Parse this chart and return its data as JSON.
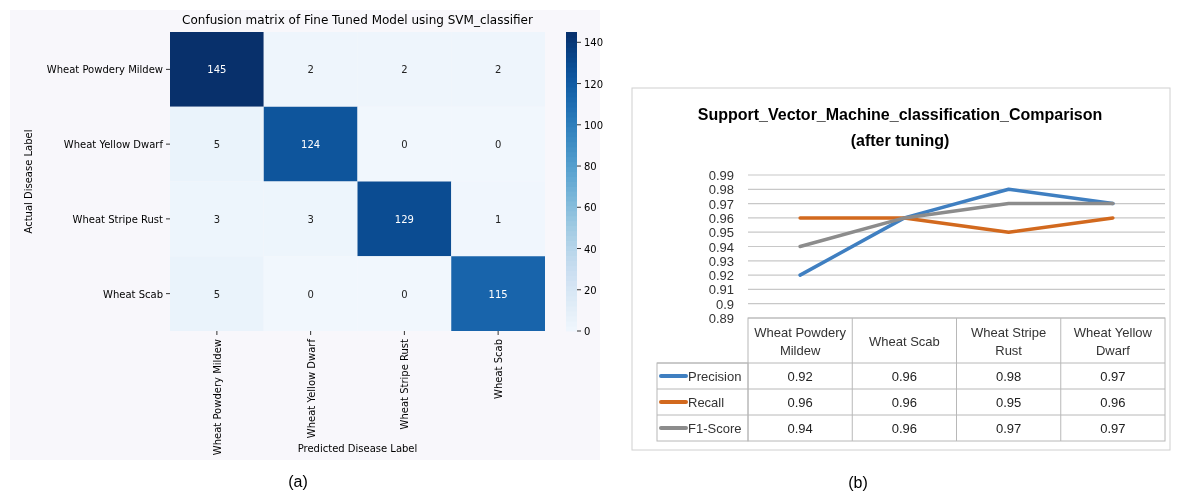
{
  "chart_data": [
    {
      "type": "heatmap",
      "title": "Confusion matrix of Fine Tuned Model using SVM_classifier",
      "xlabel": "Predicted Disease Label",
      "ylabel": "Actual Disease Label",
      "categories": [
        "Wheat Powdery Mildew",
        "Wheat Yellow Dwarf",
        "Wheat Stripe Rust",
        "Wheat Scab"
      ],
      "y_categories": [
        "Wheat Powdery Mildew",
        "Wheat Yellow Dwarf",
        "Wheat Stripe Rust",
        "Wheat Scab"
      ],
      "cells": [
        [
          145,
          2,
          2,
          2
        ],
        [
          5,
          124,
          0,
          0
        ],
        [
          3,
          3,
          129,
          1
        ],
        [
          5,
          0,
          0,
          115
        ]
      ],
      "clim": [
        0,
        145
      ],
      "cticks": [
        0,
        20,
        40,
        60,
        80,
        100,
        120,
        140
      ],
      "data_labels": true,
      "annotations": [
        "(a)"
      ]
    },
    {
      "type": "line",
      "title": "Support_Vector_Machine_classification_Comparison",
      "subtitle": "(after tuning)",
      "categories": [
        "Wheat Powdery Mildew",
        "Wheat Scab",
        "Wheat Stripe Rust",
        "Wheat Yellow Dwarf"
      ],
      "series": [
        {
          "name": "Precision",
          "color": "#3f7fc1",
          "values": [
            0.92,
            0.96,
            0.98,
            0.97
          ]
        },
        {
          "name": "Recall",
          "color": "#d2691e",
          "values": [
            0.96,
            0.96,
            0.95,
            0.96
          ]
        },
        {
          "name": "F1-Score",
          "color": "#8c8c8c",
          "values": [
            0.94,
            0.96,
            0.97,
            0.97
          ]
        }
      ],
      "ylim": [
        0.89,
        0.99
      ],
      "yticks": [
        0.89,
        0.9,
        0.91,
        0.92,
        0.93,
        0.94,
        0.95,
        0.96,
        0.97,
        0.98,
        0.99
      ],
      "grid": "y",
      "legend": "bottom",
      "data_labels": true,
      "marker": "none",
      "line_style": "solid",
      "annotations": [
        "(b)"
      ]
    }
  ]
}
